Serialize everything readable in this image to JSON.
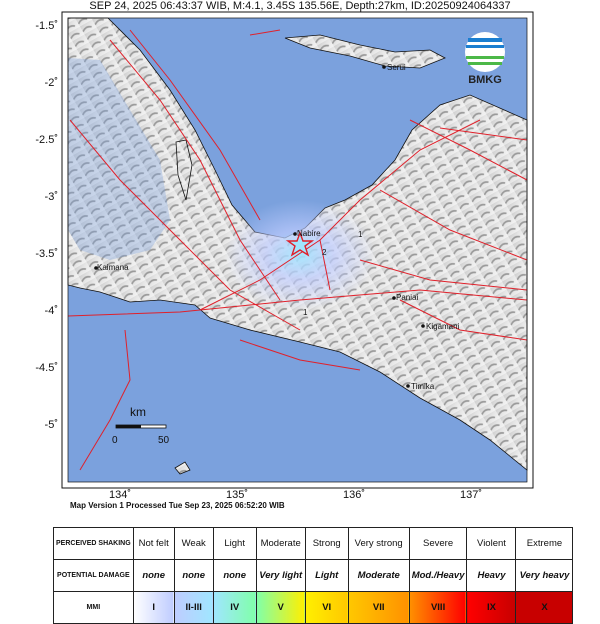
{
  "title": "SEP 24, 2025 06:43:37 WIB, M:4.1, 3.45S 135.56E, Depth:27km, ID:20250924064337",
  "footer": "Map Version 1 Processed Tue Sep 23, 2025 06:52:20 WIB",
  "logo": "BMKG",
  "lat_ticks": [
    "-1.5˚",
    "-2˚",
    "-2.5˚",
    "-3˚",
    "-3.5˚",
    "-4˚",
    "-4.5˚",
    "-5˚"
  ],
  "lon_ticks": [
    "134˚",
    "135˚",
    "136˚",
    "137˚"
  ],
  "places": [
    "Serui",
    "Nabire",
    "Kaimana",
    "Paniai",
    "Kigamani",
    "Timika"
  ],
  "contours": [
    "1",
    "2",
    "1"
  ],
  "scale": {
    "unit": "km",
    "zero": "0",
    "fifty": "50"
  },
  "colors": {
    "ocean": "#7ba1dd",
    "fault": "#e0202a",
    "epicenter": "#e0202a"
  },
  "table": {
    "shaking_label": "PERCEIVED SHAKING",
    "damage_label": "POTENTIAL DAMAGE",
    "mmi_label": "MMI",
    "shaking": [
      "Not felt",
      "Weak",
      "Light",
      "Moderate",
      "Strong",
      "Very strong",
      "Severe",
      "Violent",
      "Extreme"
    ],
    "damage": [
      "none",
      "none",
      "none",
      "Very light",
      "Light",
      "Moderate",
      "Mod./Heavy",
      "Heavy",
      "Very heavy"
    ],
    "mmi": [
      "I",
      "II-III",
      "IV",
      "V",
      "VI",
      "VII",
      "VIII",
      "IX",
      "X"
    ],
    "mmi_colors": [
      "#ffffff",
      "#bfccff",
      "#a0e6ff",
      "#80ffaa",
      "#fff000",
      "#ffc800",
      "#ff9100",
      "#ff0000",
      "#c80000"
    ]
  }
}
